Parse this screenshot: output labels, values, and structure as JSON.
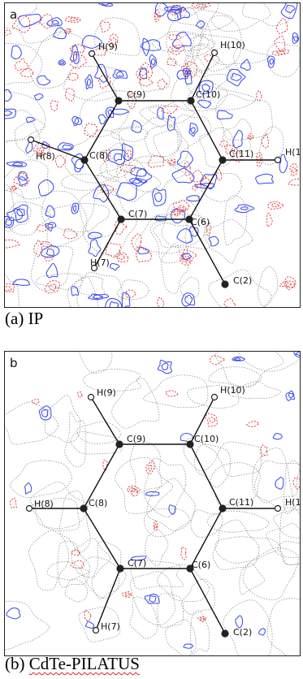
{
  "panels": [
    {
      "letter": "a",
      "caption_prefix": "(a) ",
      "caption_name": "IP",
      "atoms": [
        "H(9)",
        "H(10)",
        "C(9)",
        "C(10)",
        "H(8)",
        "C(8)",
        "C(11)",
        "H(1",
        "C(7)",
        "C(6)",
        "H(7)",
        "C(2)"
      ]
    },
    {
      "letter": "b",
      "caption_prefix": "(b) ",
      "caption_name": "CdTe-PILATUS",
      "atoms": [
        "H(9)",
        "H(10)",
        "C(9)",
        "C(10)",
        "H(8)",
        "C(8)",
        "C(11)",
        "H(1",
        "C(7)",
        "C(6)",
        "H(7)",
        "C(2)"
      ]
    }
  ],
  "colors": {
    "positive_contour": "#3344ee",
    "negative_contour": "#e03030",
    "zero_contour": "#8a8a8a",
    "bond": "#111111"
  }
}
